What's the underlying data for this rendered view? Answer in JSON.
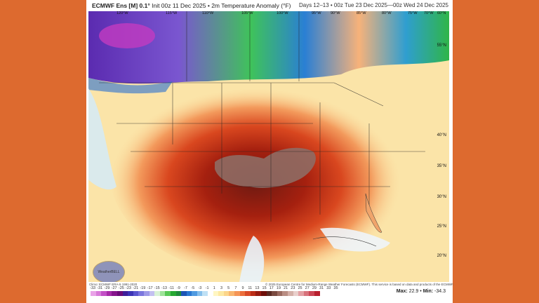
{
  "header": {
    "model": "ECMWF Ens [M] 0.1°",
    "init": "Init 00z 11 Dec 2025",
    "separator": "•",
    "field": "2m Temperature Anomaly (°F)",
    "valid": "Days 12–13 • 00z Tue 23 Dec 2025—00z Wed 24 Dec 2025"
  },
  "map": {
    "longitude_labels": [
      "120°W",
      "115°W",
      "110°W",
      "105°W",
      "100°W",
      "95°W",
      "90°W",
      "85°W",
      "80°W",
      "75°W",
      "70°W",
      "60°N"
    ],
    "latitude_labels": [
      "55°N",
      "40°N",
      "35°N",
      "30°N",
      "25°N",
      "20°N"
    ],
    "logo": "WeatherBELL"
  },
  "footer": {
    "climo": "Climo: ECMWF ERA-5 1991-2020",
    "copyright": "© 2025 European Centre for Medium-Range Weather Forecasts (ECMWF). This service is based on data and products of the ECMWF.",
    "max_label": "Max:",
    "max_value": "22.9",
    "min_label": "Min:",
    "min_value": "-34.3",
    "sep": "•"
  },
  "colorbar": {
    "ticks": [
      "-33",
      "-31",
      "-29",
      "-27",
      "-25",
      "-23",
      "-21",
      "-19",
      "-17",
      "-15",
      "-13",
      "-11",
      "-9",
      "-7",
      "-5",
      "-3",
      "-1",
      "1",
      "3",
      "5",
      "7",
      "9",
      "11",
      "13",
      "15",
      "17",
      "19",
      "21",
      "23",
      "25",
      "27",
      "29",
      "31",
      "33",
      "35"
    ],
    "colors": [
      "#e9a3e8",
      "#d77bd9",
      "#c24fc6",
      "#a62aa8",
      "#86148d",
      "#6b0b78",
      "#3e1e9a",
      "#3c34b5",
      "#5a55cf",
      "#7b76dd",
      "#9e9ae7",
      "#c3c0f0",
      "#d9f3d6",
      "#9fe39a",
      "#58c855",
      "#26a832",
      "#1e8a3b",
      "#1c54b5",
      "#2a77d1",
      "#4f9ae0",
      "#86bfeb",
      "#bfe0f5",
      "#ffffff",
      "#fff6c2",
      "#fde9a3",
      "#fcd58a",
      "#f9b66f",
      "#f59556",
      "#ec6f3c",
      "#d94a27",
      "#bb2d17",
      "#961b10",
      "#6e0f0a",
      "#5a2a22",
      "#7a4a40",
      "#9a6b60",
      "#b98d83",
      "#d4b0a8",
      "#e9cfcb",
      "#e3a0a4",
      "#d8737c",
      "#cc4654",
      "#b9202f"
    ]
  }
}
